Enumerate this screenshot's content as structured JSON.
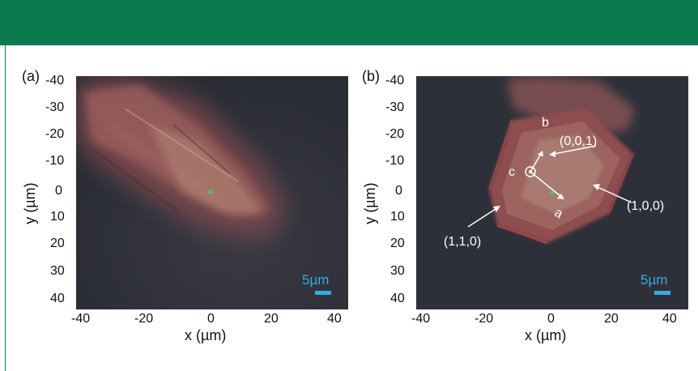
{
  "panels": [
    {
      "letter": "(a)",
      "y_ticks": [
        "-40",
        "-30",
        "-20",
        "-10",
        "0",
        "10",
        "20",
        "30",
        "40"
      ],
      "x_ticks": [
        "-40",
        "-20",
        "0",
        "20",
        "40"
      ],
      "xlabel": "x (µm)",
      "ylabel": "y (µm)",
      "scale_label": "5µm"
    },
    {
      "letter": "(b)",
      "y_ticks": [
        "-40",
        "-30",
        "-20",
        "-10",
        "0",
        "10",
        "20",
        "30",
        "40"
      ],
      "x_ticks": [
        "-40",
        "-20",
        "0",
        "20",
        "40"
      ],
      "xlabel": "x (µm)",
      "ylabel": "y (µm)",
      "scale_label": "5µm",
      "annotations": {
        "axis_b": "b",
        "axis_c": "c",
        "axis_a": "a",
        "face_001": "(0,0,1)",
        "face_100": "(1,0,0)",
        "face_110": "(1,1,0)"
      }
    }
  ],
  "colors": {
    "banner": "#0b7b4f",
    "scale": "#39a9e6",
    "background_dark": "#2e3039",
    "crystal": "#8a4a4d"
  }
}
